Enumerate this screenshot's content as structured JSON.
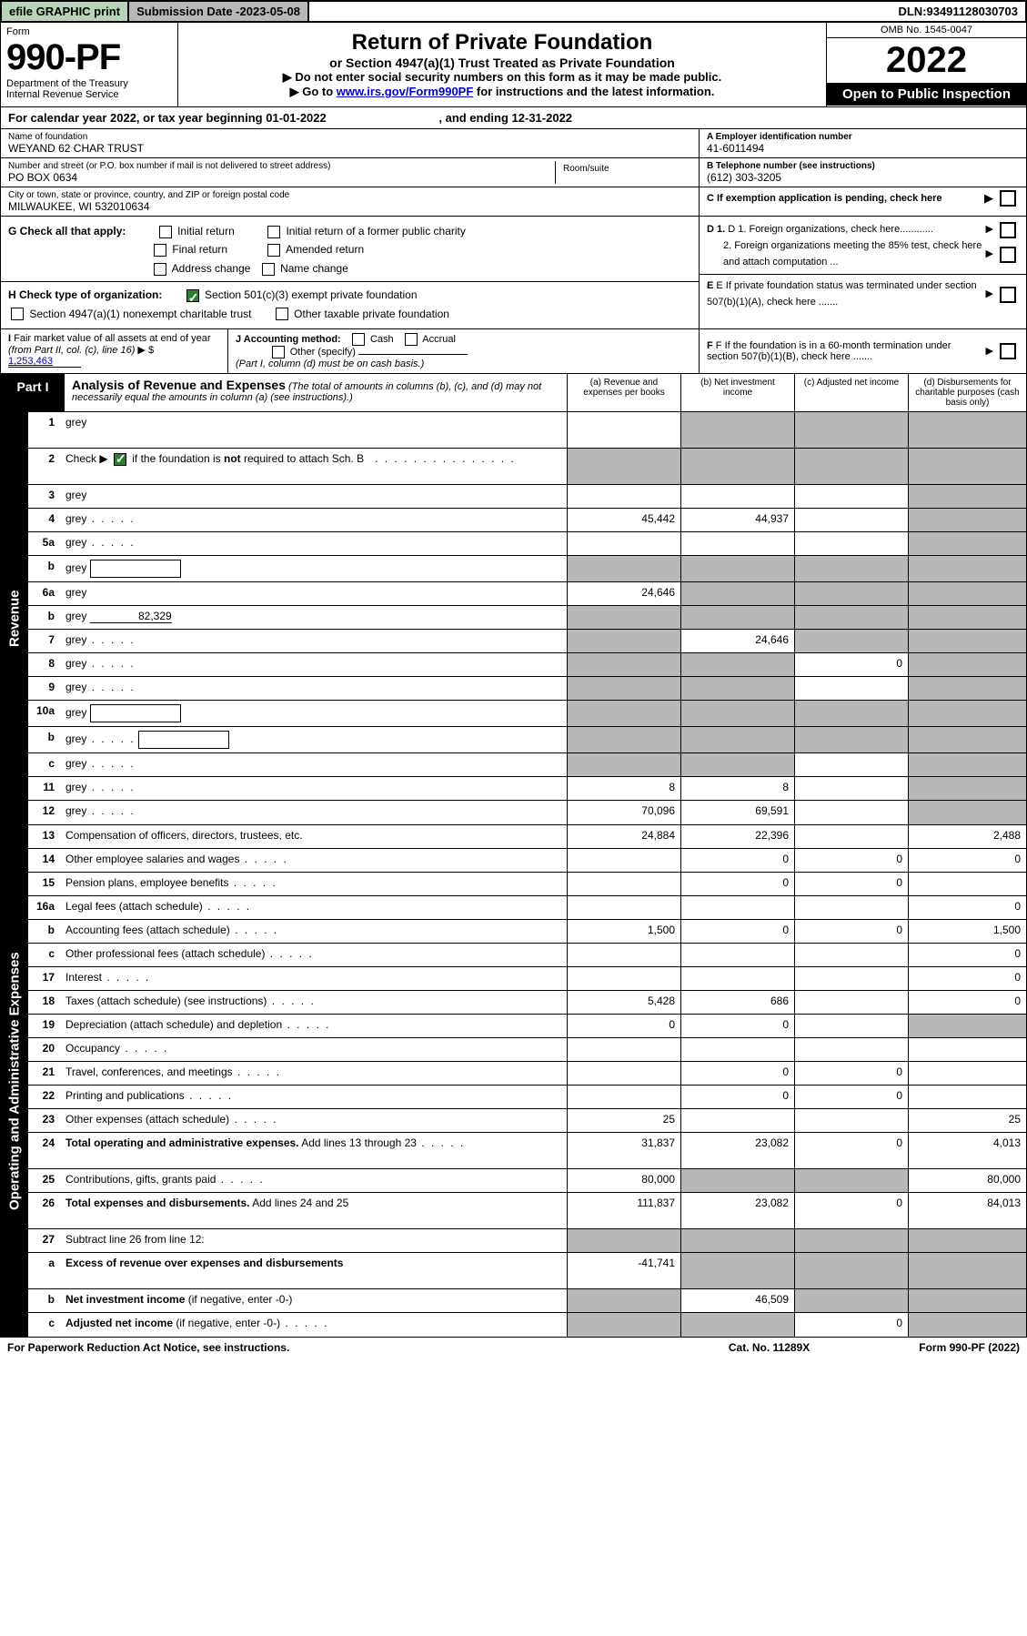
{
  "top": {
    "efile": "efile GRAPHIC print",
    "subdate_label": "Submission Date - ",
    "subdate": "2023-05-08",
    "dln_label": "DLN: ",
    "dln": "93491128030703"
  },
  "header": {
    "form_word": "Form",
    "form_num": "990-PF",
    "dept": "Department of the Treasury",
    "irs": "Internal Revenue Service",
    "title": "Return of Private Foundation",
    "subtitle1": "or Section 4947(a)(1) Trust Treated as Private Foundation",
    "subtitle2a": "▶ Do not enter social security numbers on this form as it may be made public.",
    "subtitle2b_pre": "▶ Go to ",
    "subtitle2b_link": "www.irs.gov/Form990PF",
    "subtitle2b_post": " for instructions and the latest information.",
    "omb": "OMB No. 1545-0047",
    "year": "2022",
    "otp": "Open to Public Inspection"
  },
  "calyear": {
    "prefix": "For calendar year 2022, or tax year beginning ",
    "begin": "01-01-2022",
    "mid": " , and ending ",
    "end": "12-31-2022"
  },
  "info": {
    "name_label": "Name of foundation",
    "name": "WEYAND 62 CHAR TRUST",
    "addr_label": "Number and street (or P.O. box number if mail is not delivered to street address)",
    "addr": "PO BOX 0634",
    "room_label": "Room/suite",
    "city_label": "City or town, state or province, country, and ZIP or foreign postal code",
    "city": "MILWAUKEE, WI  532010634",
    "ein_label": "A Employer identification number",
    "ein": "41-6011494",
    "phone_label": "B Telephone number (see instructions)",
    "phone": "(612) 303-3205",
    "c_label": "C If exemption application is pending, check here"
  },
  "checks": {
    "g_label": "G Check all that apply:",
    "initial": "Initial return",
    "initial_former": "Initial return of a former public charity",
    "final": "Final return",
    "amended": "Amended return",
    "addr_change": "Address change",
    "name_change": "Name change",
    "h_label": "H Check type of organization:",
    "h1": "Section 501(c)(3) exempt private foundation",
    "h2": "Section 4947(a)(1) nonexempt charitable trust",
    "h3": "Other taxable private foundation",
    "d1": "D 1. Foreign organizations, check here............",
    "d2": "2. Foreign organizations meeting the 85% test, check here and attach computation ...",
    "e": "E  If private foundation status was terminated under section 507(b)(1)(A), check here .......",
    "i_label": "I Fair market value of all assets at end of year (from Part II, col. (c), line 16) ▶ $ ",
    "i_val": "1,253,463",
    "j_label": "J Accounting method:",
    "j_cash": "Cash",
    "j_accrual": "Accrual",
    "j_other": "Other (specify)",
    "j_note": "(Part I, column (d) must be on cash basis.)",
    "f": "F  If the foundation is in a 60-month termination under section 507(b)(1)(B), check here ......."
  },
  "part1": {
    "label": "Part I",
    "title": "Analysis of Revenue and Expenses",
    "note": "(The total of amounts in columns (b), (c), and (d) may not necessarily equal the amounts in column (a) (see instructions).)",
    "col_a": "(a)  Revenue and expenses per books",
    "col_b": "(b)  Net investment income",
    "col_c": "(c)  Adjusted net income",
    "col_d": "(d)  Disbursements for charitable purposes (cash basis only)"
  },
  "side_labels": {
    "revenue": "Revenue",
    "expenses": "Operating and Administrative Expenses"
  },
  "rows": [
    {
      "n": "1",
      "d": "grey",
      "a": "",
      "b": "grey",
      "c": "grey",
      "tall": true
    },
    {
      "n": "2",
      "d": "grey",
      "a": "grey",
      "b": "grey",
      "c": "grey",
      "tall": true,
      "check": true,
      "dots": true
    },
    {
      "n": "3",
      "d": "grey",
      "a": "",
      "b": "",
      "c": ""
    },
    {
      "n": "4",
      "d": "grey",
      "a": "45,442",
      "b": "44,937",
      "c": "",
      "dots": true
    },
    {
      "n": "5a",
      "d": "grey",
      "a": "",
      "b": "",
      "c": "",
      "dots": true
    },
    {
      "n": "b",
      "d": "grey",
      "a": "grey",
      "b": "grey",
      "c": "grey",
      "inline": true
    },
    {
      "n": "6a",
      "d": "grey",
      "a": "24,646",
      "b": "grey",
      "c": "grey"
    },
    {
      "n": "b",
      "d": "grey",
      "a": "grey",
      "b": "grey",
      "c": "grey",
      "inline_val": "82,329"
    },
    {
      "n": "7",
      "d": "grey",
      "a": "grey",
      "b": "24,646",
      "c": "grey",
      "dots": true
    },
    {
      "n": "8",
      "d": "grey",
      "a": "grey",
      "b": "grey",
      "c": "0",
      "dots": true
    },
    {
      "n": "9",
      "d": "grey",
      "a": "grey",
      "b": "grey",
      "c": "",
      "dots": true
    },
    {
      "n": "10a",
      "d": "grey",
      "a": "grey",
      "b": "grey",
      "c": "grey",
      "inline": true
    },
    {
      "n": "b",
      "d": "grey",
      "a": "grey",
      "b": "grey",
      "c": "grey",
      "inline": true,
      "dots": true
    },
    {
      "n": "c",
      "d": "grey",
      "a": "grey",
      "b": "grey",
      "c": "",
      "dots": true
    },
    {
      "n": "11",
      "d": "grey",
      "a": "8",
      "b": "8",
      "c": "",
      "dots": true
    },
    {
      "n": "12",
      "d": "grey",
      "a": "70,096",
      "b": "69,591",
      "c": "",
      "dots": true
    }
  ],
  "exp_rows": [
    {
      "n": "13",
      "d": "2,488",
      "a": "24,884",
      "b": "22,396",
      "c": ""
    },
    {
      "n": "14",
      "d": "0",
      "a": "",
      "b": "0",
      "c": "0",
      "dots": true
    },
    {
      "n": "15",
      "d": "",
      "a": "",
      "b": "0",
      "c": "0",
      "dots": true
    },
    {
      "n": "16a",
      "d": "0",
      "a": "",
      "b": "",
      "c": "",
      "dots": true
    },
    {
      "n": "b",
      "d": "1,500",
      "a": "1,500",
      "b": "0",
      "c": "0",
      "dots": true
    },
    {
      "n": "c",
      "d": "0",
      "a": "",
      "b": "",
      "c": "",
      "dots": true
    },
    {
      "n": "17",
      "d": "0",
      "a": "",
      "b": "",
      "c": "",
      "dots": true
    },
    {
      "n": "18",
      "d": "0",
      "a": "5,428",
      "b": "686",
      "c": "",
      "dots": true
    },
    {
      "n": "19",
      "d": "grey",
      "a": "0",
      "b": "0",
      "c": "",
      "dots": true
    },
    {
      "n": "20",
      "d": "",
      "a": "",
      "b": "",
      "c": "",
      "dots": true
    },
    {
      "n": "21",
      "d": "",
      "a": "",
      "b": "0",
      "c": "0",
      "dots": true
    },
    {
      "n": "22",
      "d": "",
      "a": "",
      "b": "0",
      "c": "0",
      "dots": true
    },
    {
      "n": "23",
      "d": "25",
      "a": "25",
      "b": "",
      "c": "",
      "dots": true
    },
    {
      "n": "24",
      "d": "4,013",
      "a": "31,837",
      "b": "23,082",
      "c": "0",
      "tall": true,
      "dots": true
    },
    {
      "n": "25",
      "d": "80,000",
      "a": "80,000",
      "b": "grey",
      "c": "grey",
      "dots": true
    },
    {
      "n": "26",
      "d": "84,013",
      "a": "111,837",
      "b": "23,082",
      "c": "0",
      "tall": true
    },
    {
      "n": "27",
      "d": "grey",
      "a": "grey",
      "b": "grey",
      "c": "grey"
    },
    {
      "n": "a",
      "d": "grey",
      "a": "-41,741",
      "b": "grey",
      "c": "grey",
      "tall": true
    },
    {
      "n": "b",
      "d": "grey",
      "a": "grey",
      "b": "46,509",
      "c": "grey"
    },
    {
      "n": "c",
      "d": "grey",
      "a": "grey",
      "b": "grey",
      "c": "0",
      "dots": true
    }
  ],
  "footer": {
    "left": "For Paperwork Reduction Act Notice, see instructions.",
    "mid": "Cat. No. 11289X",
    "right": "Form 990-PF (2022)"
  },
  "colors": {
    "grey": "#b8b8b8",
    "green_bg": "#b8d4b8",
    "check_green": "#2e7d32",
    "link": "#0000cc"
  }
}
